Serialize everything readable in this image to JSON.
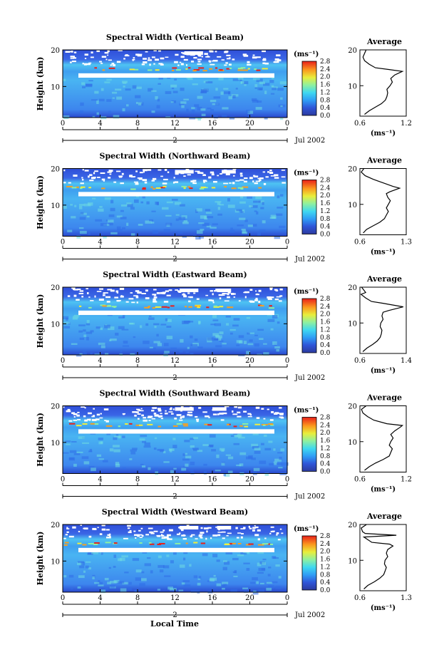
{
  "figure": {
    "xlabel": "Local Time",
    "ylabel": "Height (km)",
    "date_label": "Jul 2002",
    "day_label": "2",
    "unit_label": "(ms⁻¹)",
    "avg_title": "Average"
  },
  "chart_data": [
    {
      "type": "heatmap",
      "title": "Spectral Width (Vertical Beam)",
      "xlabel": "",
      "ylabel": "Height (km)",
      "x_ticks": [
        "0",
        "4",
        "8",
        "12",
        "16",
        "20",
        "0"
      ],
      "xlim": [
        0,
        24
      ],
      "y_ticks": [
        "10",
        "20"
      ],
      "ylim": [
        1.5,
        20
      ],
      "colorbar": {
        "ticks": [
          "0.0",
          "0.4",
          "0.8",
          "1.2",
          "1.6",
          "2.0",
          "2.4",
          "2.8"
        ],
        "range": [
          0.0,
          2.8
        ]
      },
      "white_gaps": [
        [
          13,
          15
        ]
      ],
      "average_profile": {
        "xlabel": "(ms⁻¹)",
        "x_ticks": [
          "0.6",
          "1.2"
        ],
        "xlim": [
          0.6,
          1.2
        ],
        "y_ticks": [
          "10",
          "20"
        ],
        "points": [
          [
            0.66,
            2
          ],
          [
            0.72,
            3
          ],
          [
            0.8,
            4
          ],
          [
            0.88,
            5
          ],
          [
            0.93,
            6
          ],
          [
            0.95,
            7
          ],
          [
            0.96,
            8
          ],
          [
            0.95,
            9
          ],
          [
            0.99,
            10
          ],
          [
            1.02,
            11
          ],
          [
            1.0,
            12
          ],
          [
            1.05,
            13
          ],
          [
            1.1,
            13.5
          ],
          [
            1.15,
            14
          ],
          [
            0.98,
            14.5
          ],
          [
            0.8,
            15
          ],
          [
            0.72,
            16
          ],
          [
            0.66,
            17
          ],
          [
            0.64,
            18
          ],
          [
            0.66,
            19
          ],
          [
            0.68,
            20
          ]
        ]
      }
    },
    {
      "type": "heatmap",
      "title": "Spectral Width (Northward Beam)",
      "xlabel": "",
      "ylabel": "Height (km)",
      "x_ticks": [
        "0",
        "4",
        "8",
        "12",
        "16",
        "20",
        "0"
      ],
      "xlim": [
        0,
        24
      ],
      "y_ticks": [
        "10",
        "20"
      ],
      "ylim": [
        1.5,
        20
      ],
      "colorbar": {
        "ticks": [
          "0.0",
          "0.4",
          "0.8",
          "1.2",
          "1.6",
          "2.0",
          "2.4",
          "2.8"
        ],
        "range": [
          0.0,
          2.8
        ]
      },
      "white_gaps": [
        [
          12,
          14
        ],
        [
          17,
          18.5
        ]
      ],
      "average_profile": {
        "xlabel": "(ms⁻¹)",
        "x_ticks": [
          "0.6",
          "1.3"
        ],
        "xlim": [
          0.6,
          1.3
        ],
        "y_ticks": [
          "10",
          "20"
        ],
        "points": [
          [
            0.65,
            2
          ],
          [
            0.7,
            3
          ],
          [
            0.8,
            4
          ],
          [
            0.9,
            5
          ],
          [
            0.97,
            6
          ],
          [
            1.0,
            7
          ],
          [
            1.03,
            8
          ],
          [
            1.0,
            9
          ],
          [
            1.03,
            10
          ],
          [
            1.06,
            11
          ],
          [
            1.02,
            12
          ],
          [
            1.0,
            13
          ],
          [
            1.05,
            13.5
          ],
          [
            1.2,
            14.5
          ],
          [
            1.1,
            15
          ],
          [
            0.95,
            16
          ],
          [
            0.8,
            17
          ],
          [
            0.68,
            18
          ],
          [
            0.62,
            19
          ],
          [
            0.66,
            20
          ]
        ]
      }
    },
    {
      "type": "heatmap",
      "title": "Spectral Width (Eastward Beam)",
      "xlabel": "",
      "ylabel": "Height (km)",
      "x_ticks": [
        "0",
        "4",
        "8",
        "12",
        "16",
        "20",
        "0"
      ],
      "xlim": [
        0,
        24
      ],
      "y_ticks": [
        "10",
        "20"
      ],
      "ylim": [
        1.5,
        20
      ],
      "colorbar": {
        "ticks": [
          "0.0",
          "0.4",
          "0.8",
          "1.2",
          "1.6",
          "2.0",
          "2.4",
          "2.8"
        ],
        "range": [
          0.0,
          2.8
        ]
      },
      "white_gaps": [
        [
          12.5,
          14.5
        ],
        [
          16.5,
          18
        ]
      ],
      "average_profile": {
        "xlabel": "(ms⁻¹)",
        "x_ticks": [
          "0.6",
          "1.4"
        ],
        "xlim": [
          0.6,
          1.4
        ],
        "y_ticks": [
          "10",
          "20"
        ],
        "points": [
          [
            0.65,
            2
          ],
          [
            0.72,
            3
          ],
          [
            0.82,
            4
          ],
          [
            0.9,
            5
          ],
          [
            0.95,
            6
          ],
          [
            0.97,
            7
          ],
          [
            0.98,
            8
          ],
          [
            0.95,
            9
          ],
          [
            0.96,
            10
          ],
          [
            1.0,
            11
          ],
          [
            0.98,
            12
          ],
          [
            1.0,
            13
          ],
          [
            1.1,
            13.5
          ],
          [
            1.35,
            14.5
          ],
          [
            1.0,
            15.5
          ],
          [
            0.8,
            16
          ],
          [
            0.7,
            17
          ],
          [
            0.62,
            18
          ],
          [
            0.7,
            18.5
          ],
          [
            0.63,
            20
          ]
        ]
      }
    },
    {
      "type": "heatmap",
      "title": "Spectral Width (Southward Beam)",
      "xlabel": "",
      "ylabel": "Height (km)",
      "x_ticks": [
        "0",
        "4",
        "8",
        "12",
        "16",
        "20",
        "0"
      ],
      "xlim": [
        0,
        24
      ],
      "y_ticks": [
        "10",
        "20"
      ],
      "ylim": [
        1.5,
        20
      ],
      "colorbar": {
        "ticks": [
          "0.0",
          "0.4",
          "0.8",
          "1.2",
          "1.6",
          "2.0",
          "2.4",
          "2.8"
        ],
        "range": [
          0.0,
          2.8
        ]
      },
      "white_gaps": [
        [
          12,
          14
        ],
        [
          16,
          17.5
        ]
      ],
      "average_profile": {
        "xlabel": "(ms⁻¹)",
        "x_ticks": [
          "0.6",
          "1.2"
        ],
        "xlim": [
          0.6,
          1.2
        ],
        "y_ticks": [
          "10",
          "20"
        ],
        "points": [
          [
            0.66,
            2
          ],
          [
            0.72,
            3
          ],
          [
            0.8,
            4
          ],
          [
            0.9,
            5
          ],
          [
            0.98,
            6
          ],
          [
            1.0,
            7
          ],
          [
            1.02,
            8
          ],
          [
            0.98,
            9
          ],
          [
            1.0,
            10
          ],
          [
            1.03,
            11
          ],
          [
            1.0,
            12
          ],
          [
            1.05,
            13
          ],
          [
            1.12,
            14
          ],
          [
            1.15,
            14.5
          ],
          [
            0.95,
            15
          ],
          [
            0.78,
            16
          ],
          [
            0.7,
            17
          ],
          [
            0.64,
            18
          ],
          [
            0.62,
            19
          ],
          [
            0.68,
            20
          ]
        ]
      }
    },
    {
      "type": "heatmap",
      "title": "Spectral Width (Westward Beam)",
      "xlabel": "Local Time",
      "ylabel": "Height (km)",
      "x_ticks": [
        "0",
        "4",
        "8",
        "12",
        "16",
        "20",
        "0"
      ],
      "xlim": [
        0,
        24
      ],
      "y_ticks": [
        "10",
        "20"
      ],
      "ylim": [
        1.5,
        20
      ],
      "colorbar": {
        "ticks": [
          "0.0",
          "0.4",
          "0.8",
          "1.2",
          "1.6",
          "2.0",
          "2.4",
          "2.8"
        ],
        "range": [
          0.0,
          2.8
        ]
      },
      "white_gaps": [
        [
          12.5,
          14.5
        ],
        [
          16.5,
          18
        ]
      ],
      "average_profile": {
        "xlabel": "(ms⁻¹)",
        "x_ticks": [
          "0.6",
          "1.3"
        ],
        "xlim": [
          0.6,
          1.3
        ],
        "y_ticks": [
          "10",
          "20"
        ],
        "points": [
          [
            0.66,
            2
          ],
          [
            0.72,
            3
          ],
          [
            0.82,
            4
          ],
          [
            0.9,
            5
          ],
          [
            0.96,
            6
          ],
          [
            0.98,
            7
          ],
          [
            1.0,
            8
          ],
          [
            0.97,
            9
          ],
          [
            0.98,
            10
          ],
          [
            1.02,
            11
          ],
          [
            1.0,
            12
          ],
          [
            1.02,
            13
          ],
          [
            1.1,
            14
          ],
          [
            1.05,
            14.5
          ],
          [
            0.78,
            15
          ],
          [
            0.7,
            16
          ],
          [
            0.66,
            16.5
          ],
          [
            1.15,
            17
          ],
          [
            0.68,
            17.5
          ],
          [
            0.64,
            18
          ],
          [
            0.62,
            19
          ],
          [
            0.7,
            20
          ]
        ]
      }
    }
  ]
}
